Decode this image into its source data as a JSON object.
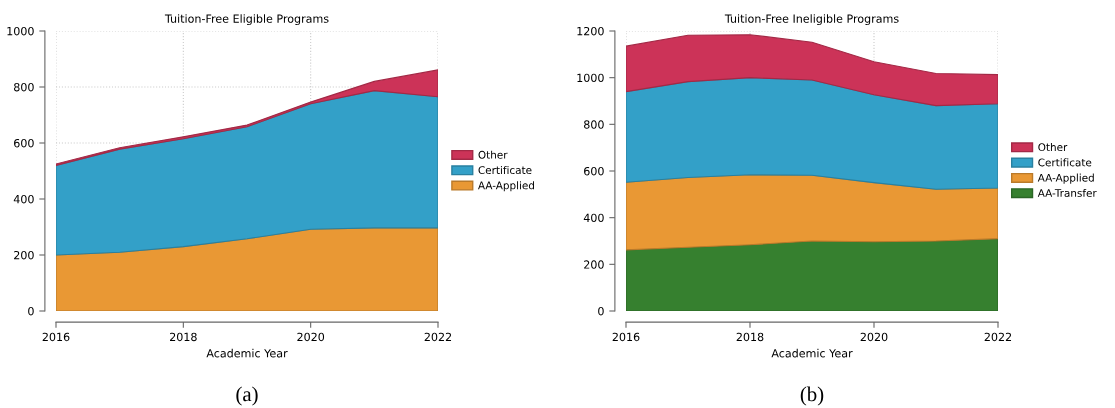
{
  "chart_data": [
    {
      "type": "area",
      "title": "Tuition-Free Eligible Programs",
      "xlabel": "Academic Year",
      "x": [
        2016,
        2017,
        2018,
        2019,
        2020,
        2021,
        2022
      ],
      "stacked": true,
      "xlim": [
        2016,
        2022
      ],
      "xticks": [
        2016,
        2018,
        2020,
        2022
      ],
      "ylim": [
        0,
        1000
      ],
      "yticks": [
        0,
        200,
        400,
        600,
        800,
        1000
      ],
      "grid": true,
      "legend": "right",
      "annotations": [
        "(a)"
      ],
      "series": [
        {
          "name": "AA-Applied",
          "color": "#e99834",
          "values": [
            200,
            210,
            230,
            258,
            292,
            297,
            297
          ]
        },
        {
          "name": "Certificate",
          "color": "#33a0c8",
          "values": [
            320,
            368,
            385,
            400,
            448,
            490,
            468
          ]
        },
        {
          "name": "Other",
          "color": "#cc3358",
          "values": [
            5,
            5,
            7,
            6,
            6,
            33,
            96
          ]
        }
      ]
    },
    {
      "type": "area",
      "title": "Tuition-Free Ineligible Programs",
      "xlabel": "Academic Year",
      "x": [
        2016,
        2017,
        2018,
        2019,
        2020,
        2021,
        2022
      ],
      "stacked": true,
      "xlim": [
        2016,
        2022
      ],
      "xticks": [
        2016,
        2018,
        2020,
        2022
      ],
      "ylim": [
        0,
        1200
      ],
      "yticks": [
        0,
        200,
        400,
        600,
        800,
        1000,
        1200
      ],
      "grid": true,
      "legend": "right",
      "annotations": [
        "(b)"
      ],
      "series": [
        {
          "name": "AA-Transfer",
          "color": "#36802f",
          "values": [
            262,
            273,
            284,
            300,
            297,
            300,
            310
          ]
        },
        {
          "name": "AA-Applied",
          "color": "#e99834",
          "values": [
            290,
            299,
            300,
            282,
            253,
            222,
            217
          ]
        },
        {
          "name": "Certificate",
          "color": "#33a0c8",
          "values": [
            388,
            411,
            416,
            408,
            377,
            358,
            361
          ]
        },
        {
          "name": "Other",
          "color": "#cc3358",
          "values": [
            195,
            199,
            184,
            162,
            141,
            138,
            125
          ]
        }
      ]
    }
  ]
}
